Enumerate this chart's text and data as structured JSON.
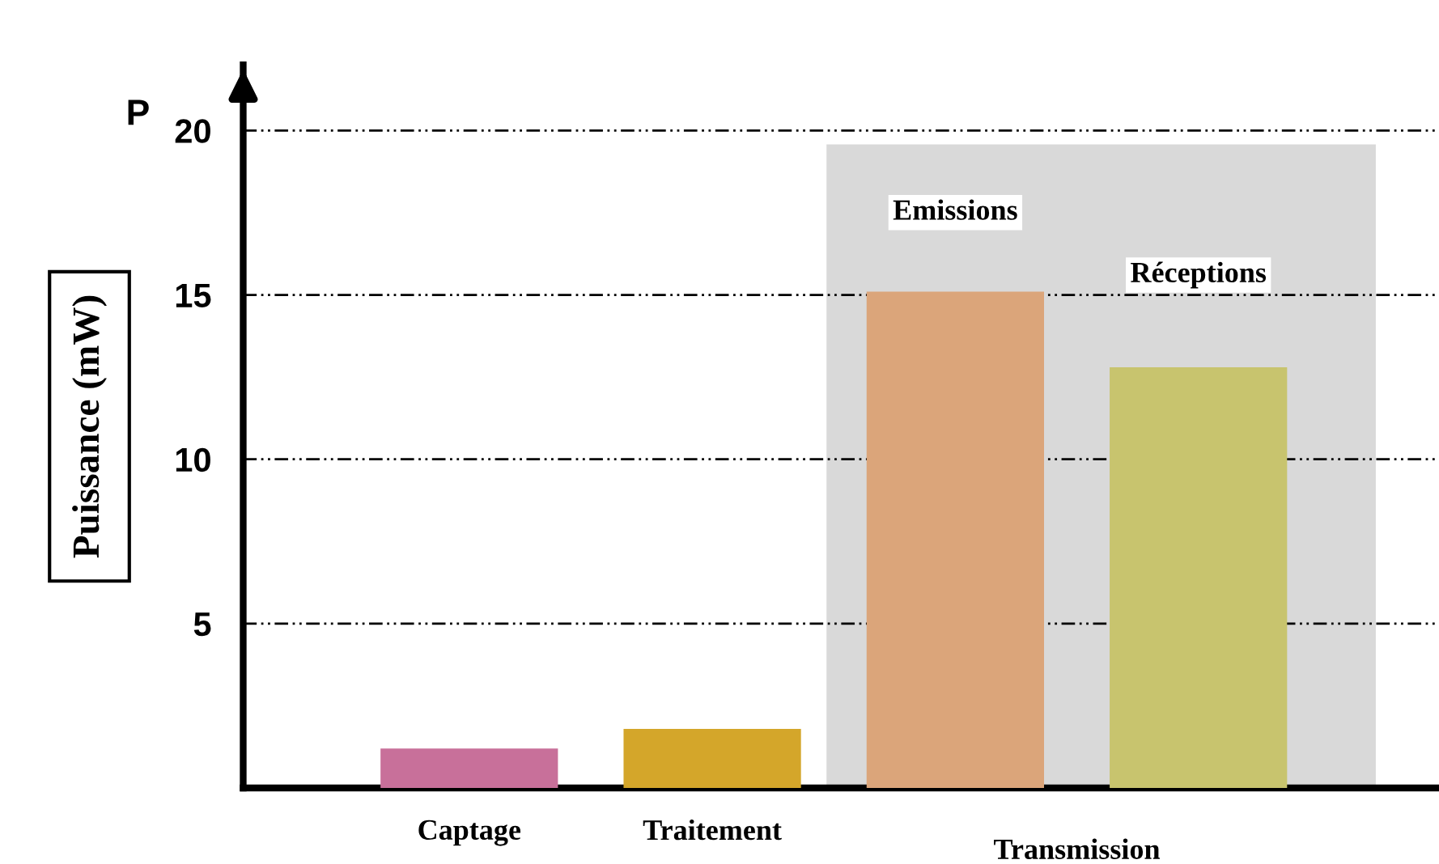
{
  "chart_data": {
    "type": "bar",
    "categories": [
      "Captage",
      "Traitement",
      null,
      null
    ],
    "values": [
      1.2,
      1.8,
      15.1,
      12.8
    ],
    "colors": [
      "#c8709a",
      "#d4a62a",
      "#dba57a",
      "#c8c46e"
    ],
    "ylabel": "Puissance (mW)",
    "annotations": [
      "P",
      "Emissions",
      "Réceptions",
      "Transmission"
    ],
    "ylim": [
      0,
      22
    ],
    "yticks": [
      5,
      10,
      15,
      20
    ],
    "grid": "y"
  }
}
